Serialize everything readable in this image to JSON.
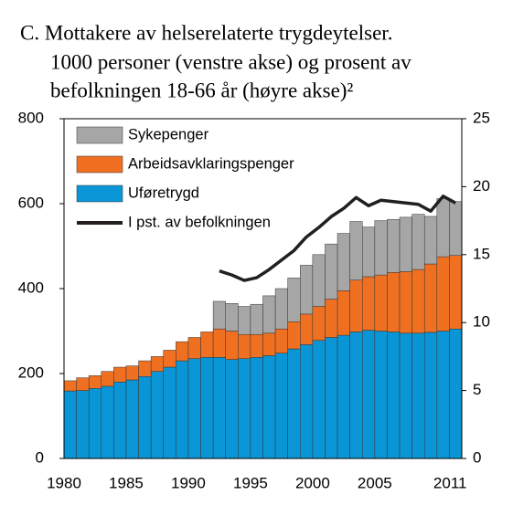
{
  "chart_data": {
    "type": "stacked-bar-line",
    "title": [
      "C.  Mottakere av helserelaterte trygdeytelser.",
      "1000  personer (venstre akse) og prosent av",
      "befolkningen 18-66 år (høyre akse)²"
    ],
    "categories": [
      "1980",
      null,
      null,
      null,
      null,
      "1985",
      null,
      null,
      null,
      null,
      "1990",
      null,
      null,
      null,
      null,
      "1995",
      null,
      null,
      null,
      null,
      "2000",
      null,
      null,
      null,
      null,
      "2005",
      null,
      null,
      null,
      null,
      null,
      "2011"
    ],
    "series": [
      {
        "name": "Sykepenger",
        "type": "bar",
        "color": "#a6a6a6",
        "values": [
          null,
          null,
          null,
          null,
          null,
          null,
          null,
          null,
          null,
          null,
          null,
          null,
          65,
          65,
          66,
          71,
          88,
          95,
          103,
          115,
          122,
          130,
          135,
          138,
          117,
          128,
          125,
          128,
          130,
          112,
          137,
          127
        ]
      },
      {
        "name": "Arbeidsavklaringspenger",
        "type": "bar",
        "color": "#f07022",
        "values": [
          24,
          30,
          30,
          35,
          35,
          33,
          37,
          35,
          40,
          45,
          50,
          60,
          67,
          67,
          57,
          54,
          53,
          57,
          64,
          72,
          80,
          90,
          105,
          122,
          126,
          132,
          140,
          145,
          150,
          161,
          175,
          173
        ]
      },
      {
        "name": "Uføretrygd",
        "type": "bar",
        "color": "#0a96d6",
        "values": [
          159,
          160,
          165,
          170,
          180,
          185,
          193,
          205,
          215,
          230,
          235,
          238,
          238,
          233,
          235,
          238,
          242,
          248,
          258,
          268,
          278,
          285,
          290,
          298,
          302,
          300,
          298,
          295,
          295,
          297,
          300,
          305
        ]
      },
      {
        "name": "I pst. av befolkningen",
        "type": "line",
        "axis": "y2",
        "color": "#231f20",
        "values": [
          null,
          null,
          null,
          null,
          null,
          null,
          null,
          null,
          null,
          null,
          null,
          null,
          13.8,
          13.5,
          13.1,
          13.3,
          13.9,
          14.6,
          15.3,
          16.3,
          17.0,
          17.8,
          18.4,
          19.2,
          18.6,
          19.0,
          18.9,
          18.8,
          18.7,
          18.2,
          19.3,
          18.8
        ]
      }
    ],
    "ylim": [
      0,
      800
    ],
    "yticks": [
      0,
      200,
      400,
      600,
      800
    ],
    "y2lim": [
      0,
      25
    ],
    "y2ticks": [
      0,
      5,
      10,
      15,
      20,
      25
    ],
    "legend": "upper left"
  }
}
